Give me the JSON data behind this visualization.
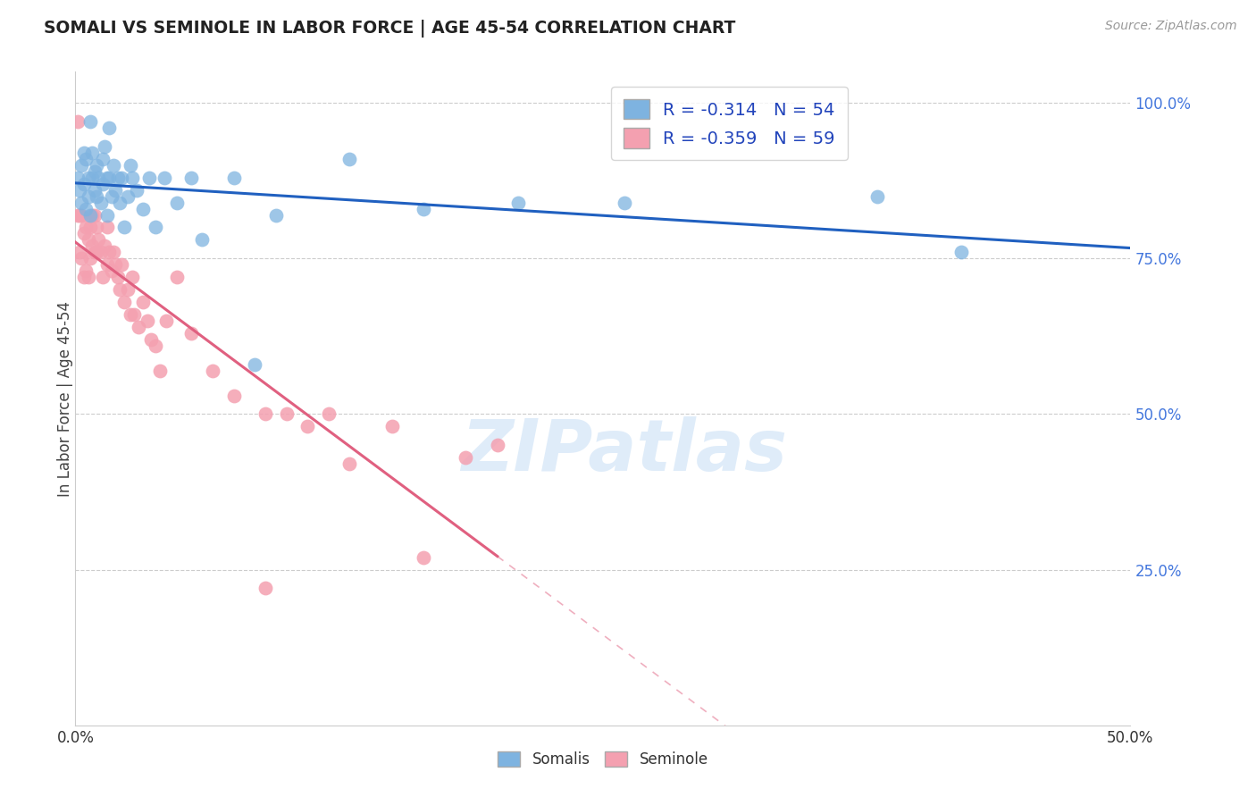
{
  "title": "SOMALI VS SEMINOLE IN LABOR FORCE | AGE 45-54 CORRELATION CHART",
  "source": "Source: ZipAtlas.com",
  "ylabel": "In Labor Force | Age 45-54",
  "xlim": [
    0.0,
    0.5
  ],
  "ylim": [
    0.0,
    1.05
  ],
  "yticks": [
    0.25,
    0.5,
    0.75,
    1.0
  ],
  "ytick_labels": [
    "25.0%",
    "50.0%",
    "75.0%",
    "100.0%"
  ],
  "xticks": [
    0.0,
    0.05,
    0.1,
    0.15,
    0.2,
    0.25,
    0.3,
    0.35,
    0.4,
    0.45,
    0.5
  ],
  "xtick_labels": [
    "0.0%",
    "",
    "",
    "",
    "",
    "",
    "",
    "",
    "",
    "",
    "50.0%"
  ],
  "somali_color": "#7eb3e0",
  "seminole_color": "#f4a0b0",
  "somali_line_color": "#2060c0",
  "seminole_line_color": "#e06080",
  "seminole_line_solid_end": 0.2,
  "R_somali": -0.314,
  "N_somali": 54,
  "R_seminole": -0.359,
  "N_seminole": 59,
  "watermark_text": "ZIPatlas",
  "somali_x": [
    0.001,
    0.002,
    0.003,
    0.003,
    0.004,
    0.004,
    0.005,
    0.005,
    0.006,
    0.006,
    0.007,
    0.007,
    0.008,
    0.008,
    0.009,
    0.009,
    0.01,
    0.01,
    0.011,
    0.012,
    0.013,
    0.013,
    0.014,
    0.015,
    0.015,
    0.016,
    0.016,
    0.017,
    0.018,
    0.019,
    0.02,
    0.021,
    0.022,
    0.023,
    0.025,
    0.026,
    0.027,
    0.029,
    0.032,
    0.035,
    0.038,
    0.042,
    0.048,
    0.055,
    0.06,
    0.075,
    0.085,
    0.095,
    0.13,
    0.165,
    0.21,
    0.26,
    0.38,
    0.42
  ],
  "somali_y": [
    0.88,
    0.86,
    0.9,
    0.84,
    0.92,
    0.87,
    0.83,
    0.91,
    0.88,
    0.85,
    0.97,
    0.82,
    0.88,
    0.92,
    0.86,
    0.89,
    0.9,
    0.85,
    0.88,
    0.84,
    0.91,
    0.87,
    0.93,
    0.88,
    0.82,
    0.96,
    0.88,
    0.85,
    0.9,
    0.86,
    0.88,
    0.84,
    0.88,
    0.8,
    0.85,
    0.9,
    0.88,
    0.86,
    0.83,
    0.88,
    0.8,
    0.88,
    0.84,
    0.88,
    0.78,
    0.88,
    0.58,
    0.82,
    0.91,
    0.83,
    0.84,
    0.84,
    0.85,
    0.76
  ],
  "seminole_x": [
    0.001,
    0.001,
    0.002,
    0.002,
    0.003,
    0.003,
    0.004,
    0.004,
    0.005,
    0.005,
    0.006,
    0.006,
    0.007,
    0.007,
    0.008,
    0.008,
    0.009,
    0.009,
    0.01,
    0.01,
    0.011,
    0.012,
    0.013,
    0.014,
    0.015,
    0.015,
    0.016,
    0.017,
    0.018,
    0.019,
    0.02,
    0.021,
    0.022,
    0.023,
    0.025,
    0.026,
    0.027,
    0.028,
    0.03,
    0.032,
    0.034,
    0.036,
    0.038,
    0.04,
    0.043,
    0.048,
    0.055,
    0.065,
    0.075,
    0.09,
    0.1,
    0.11,
    0.13,
    0.15,
    0.165,
    0.185,
    0.2,
    0.12,
    0.09
  ],
  "seminole_y": [
    0.97,
    0.82,
    0.76,
    0.82,
    0.75,
    0.82,
    0.72,
    0.79,
    0.73,
    0.8,
    0.72,
    0.78,
    0.75,
    0.8,
    0.77,
    0.82,
    0.76,
    0.82,
    0.76,
    0.8,
    0.78,
    0.76,
    0.72,
    0.77,
    0.74,
    0.8,
    0.76,
    0.73,
    0.76,
    0.74,
    0.72,
    0.7,
    0.74,
    0.68,
    0.7,
    0.66,
    0.72,
    0.66,
    0.64,
    0.68,
    0.65,
    0.62,
    0.61,
    0.57,
    0.65,
    0.72,
    0.63,
    0.57,
    0.53,
    0.5,
    0.5,
    0.48,
    0.42,
    0.48,
    0.27,
    0.43,
    0.45,
    0.5,
    0.22
  ]
}
